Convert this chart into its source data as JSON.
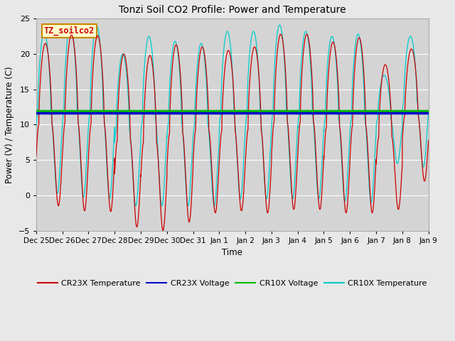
{
  "title": "Tonzi Soil CO2 Profile: Power and Temperature",
  "ylabel": "Power (V) / Temperature (C)",
  "xlabel": "Time",
  "ylim": [
    -5,
    25
  ],
  "fig_bg_color": "#e8e8e8",
  "plot_bg_color": "#d4d4d4",
  "cr23x_voltage_value": 11.7,
  "cr10x_voltage_value": 12.0,
  "cr23x_voltage_color": "#0000cc",
  "cr10x_voltage_color": "#00bb00",
  "cr23x_temp_color": "#cc0000",
  "cr10x_temp_color": "#00cccc",
  "annotation_text": "TZ_soilco2",
  "annotation_bg": "#ffffcc",
  "annotation_border": "#cc8800",
  "tick_labels": [
    "Dec 25",
    "Dec 26",
    "Dec 27",
    "Dec 28",
    "Dec 29",
    "Dec 30",
    "Dec 31",
    "Jan 1",
    "Jan 2",
    "Jan 3",
    "Jan 4",
    "Jan 5",
    "Jan 6",
    "Jan 7",
    "Jan 8",
    "Jan 9"
  ],
  "num_days": 15,
  "cr23x_peaks": [
    21.5,
    22.7,
    22.6,
    20.0,
    19.8,
    21.3,
    21.0,
    20.5,
    21.0,
    22.8,
    22.8,
    21.7,
    22.3,
    18.5,
    20.7
  ],
  "cr23x_troughs": [
    -1.5,
    -2.2,
    -2.3,
    -4.5,
    -5.0,
    -3.8,
    -2.5,
    -2.2,
    -2.5,
    -2.0,
    -2.0,
    -2.5,
    -2.5,
    -2.0,
    2.0
  ],
  "cr10x_peaks": [
    23.0,
    24.1,
    24.0,
    20.0,
    22.5,
    21.8,
    21.5,
    23.2,
    23.2,
    24.1,
    23.2,
    22.5,
    22.8,
    17.0,
    22.5
  ],
  "cr10x_troughs": [
    0.3,
    -0.3,
    -0.5,
    -1.5,
    -1.5,
    -1.5,
    -1.5,
    -0.5,
    -0.5,
    -0.5,
    -0.5,
    -0.8,
    -1.0,
    4.5,
    4.0
  ],
  "cr10x_phase": 0.04,
  "grid_color": "#bbbbbb",
  "yticks": [
    -5,
    0,
    5,
    10,
    15,
    20,
    25
  ]
}
